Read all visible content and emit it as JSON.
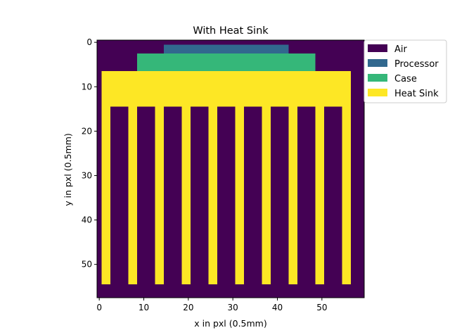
{
  "chart_data": {
    "type": "heatmap",
    "title": "With Heat Sink",
    "xlabel": "x in pxl (0.5mm)",
    "ylabel": "y in pxl (0.5mm)",
    "grid_width": 60,
    "grid_height": 58,
    "xlim": [
      -0.5,
      59.5
    ],
    "ylim": [
      57.5,
      -0.5
    ],
    "xticks": [
      0,
      10,
      20,
      30,
      40,
      50
    ],
    "yticks": [
      0,
      10,
      20,
      30,
      40,
      50
    ],
    "grid": false,
    "legend_position": "upper-right-outside",
    "categories": [
      {
        "name": "Air",
        "color": "#440154"
      },
      {
        "name": "Processor",
        "color": "#31688e"
      },
      {
        "name": "Case",
        "color": "#35b779"
      },
      {
        "name": "Heat Sink",
        "color": "#fde725"
      }
    ],
    "background_category": "Air",
    "regions": [
      {
        "category": "Processor",
        "x_start": 15,
        "x_end": 43,
        "y_start": 1,
        "y_end": 3
      },
      {
        "category": "Case",
        "x_start": 9,
        "x_end": 49,
        "y_start": 3,
        "y_end": 7
      },
      {
        "category": "Heat Sink",
        "x_start": 1,
        "x_end": 57,
        "y_start": 7,
        "y_end": 15
      }
    ],
    "fins": {
      "category": "Heat Sink",
      "x_starts": [
        1,
        7,
        13,
        19,
        25,
        31,
        37,
        43,
        49,
        55
      ],
      "width": 2,
      "y_start": 15,
      "y_end": 55
    }
  }
}
